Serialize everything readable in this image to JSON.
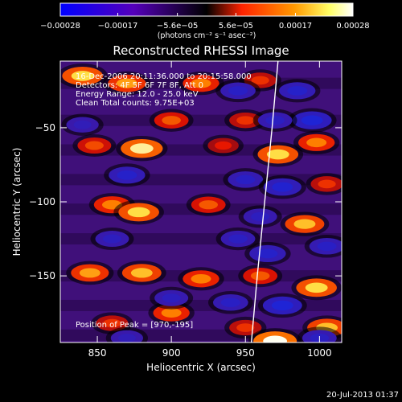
{
  "chart_data": {
    "type": "heatmap",
    "title": "Reconstructed RHESSI Image",
    "xlabel": "Heliocentric X (arcsec)",
    "ylabel": "Heliocentric Y (arcsec)",
    "xlim": [
      825,
      1015
    ],
    "ylim": [
      -195,
      -5
    ],
    "x_ticks": [
      850,
      900,
      950,
      1000
    ],
    "x_tick_labels": [
      "850",
      "900",
      "950",
      "1000"
    ],
    "y_ticks": [
      -50,
      -100,
      -150
    ],
    "y_tick_labels": [
      "−50",
      "−100",
      "−150"
    ],
    "colorbar": {
      "range": [
        -0.00028,
        0.00028
      ],
      "tick_values": [
        -0.00028,
        -0.00017,
        -5.6e-05,
        5.6e-05,
        0.00017,
        0.00028
      ],
      "tick_labels": [
        "−0.00028",
        "−0.00017",
        "−5.6e−05",
        "5.6e−05",
        "0.00017",
        "0.00028"
      ],
      "unit_label": "(photons cm⁻² s⁻¹ asec⁻²)",
      "colors": [
        "#0000ff",
        "#5500bb",
        "#000000",
        "#ff2200",
        "#ff9900",
        "#ffff66",
        "#ffffff"
      ]
    },
    "annotations": [
      "16-Dec-2006 20:11:36.000 to 20:15:58.000",
      "Detectors: 4F 5F 6F 7F 8F, Att 0",
      "Energy Range: 12.0 - 25.0 keV",
      "Clean     Total counts: 9.75E+03"
    ],
    "peak_label": "Position of Peak = [970,-195]",
    "peak": [
      970,
      -195
    ],
    "limb_curve": [
      [
        972,
        -5
      ],
      [
        968,
        -50
      ],
      [
        963,
        -100
      ],
      [
        958,
        -150
      ],
      [
        954,
        -195
      ]
    ],
    "blobs": [
      {
        "x": 840,
        "y": -15,
        "v": 0.00024
      },
      {
        "x": 870,
        "y": -20,
        "v": 0.0002
      },
      {
        "x": 920,
        "y": -20,
        "v": 0.00018
      },
      {
        "x": 960,
        "y": -18,
        "v": 0.00012
      },
      {
        "x": 900,
        "y": -45,
        "v": 0.00015
      },
      {
        "x": 950,
        "y": -45,
        "v": 0.00012
      },
      {
        "x": 880,
        "y": -64,
        "v": 0.00026
      },
      {
        "x": 848,
        "y": -62,
        "v": 0.00014
      },
      {
        "x": 935,
        "y": -62,
        "v": 0.0001
      },
      {
        "x": 972,
        "y": -68,
        "v": 0.00024
      },
      {
        "x": 998,
        "y": -60,
        "v": 0.00018
      },
      {
        "x": 860,
        "y": -102,
        "v": 0.00018
      },
      {
        "x": 878,
        "y": -107,
        "v": 0.00024
      },
      {
        "x": 925,
        "y": -102,
        "v": 0.00015
      },
      {
        "x": 990,
        "y": -115,
        "v": 0.00022
      },
      {
        "x": 1005,
        "y": -88,
        "v": 0.00012
      },
      {
        "x": 845,
        "y": -148,
        "v": 0.0002
      },
      {
        "x": 880,
        "y": -148,
        "v": 0.00022
      },
      {
        "x": 920,
        "y": -152,
        "v": 0.00018
      },
      {
        "x": 960,
        "y": -150,
        "v": 0.00015
      },
      {
        "x": 998,
        "y": -158,
        "v": 0.00024
      },
      {
        "x": 900,
        "y": -175,
        "v": 0.00018
      },
      {
        "x": 860,
        "y": -182,
        "v": 0.00012
      },
      {
        "x": 950,
        "y": -185,
        "v": 0.00012
      },
      {
        "x": 1005,
        "y": -185,
        "v": 0.00022
      },
      {
        "x": 970,
        "y": -194,
        "v": 0.00028
      },
      {
        "x": 945,
        "y": -25,
        "v": -0.00016
      },
      {
        "x": 985,
        "y": -25,
        "v": -0.00018
      },
      {
        "x": 995,
        "y": -45,
        "v": -0.00022
      },
      {
        "x": 970,
        "y": -45,
        "v": -0.00015
      },
      {
        "x": 840,
        "y": -48,
        "v": -0.00012
      },
      {
        "x": 870,
        "y": -82,
        "v": -0.00018
      },
      {
        "x": 950,
        "y": -85,
        "v": -0.00016
      },
      {
        "x": 975,
        "y": -90,
        "v": -0.0002
      },
      {
        "x": 960,
        "y": -110,
        "v": -0.00014
      },
      {
        "x": 860,
        "y": -125,
        "v": -0.00014
      },
      {
        "x": 945,
        "y": -125,
        "v": -0.00015
      },
      {
        "x": 965,
        "y": -135,
        "v": -0.00018
      },
      {
        "x": 1005,
        "y": -130,
        "v": -0.00016
      },
      {
        "x": 900,
        "y": -165,
        "v": -0.00014
      },
      {
        "x": 940,
        "y": -168,
        "v": -0.00016
      },
      {
        "x": 975,
        "y": -170,
        "v": -0.00022
      },
      {
        "x": 870,
        "y": -192,
        "v": -0.00012
      },
      {
        "x": 1000,
        "y": -192,
        "v": -0.00015
      }
    ]
  },
  "footer": {
    "timestamp": "20-Jul-2013 01:37"
  }
}
